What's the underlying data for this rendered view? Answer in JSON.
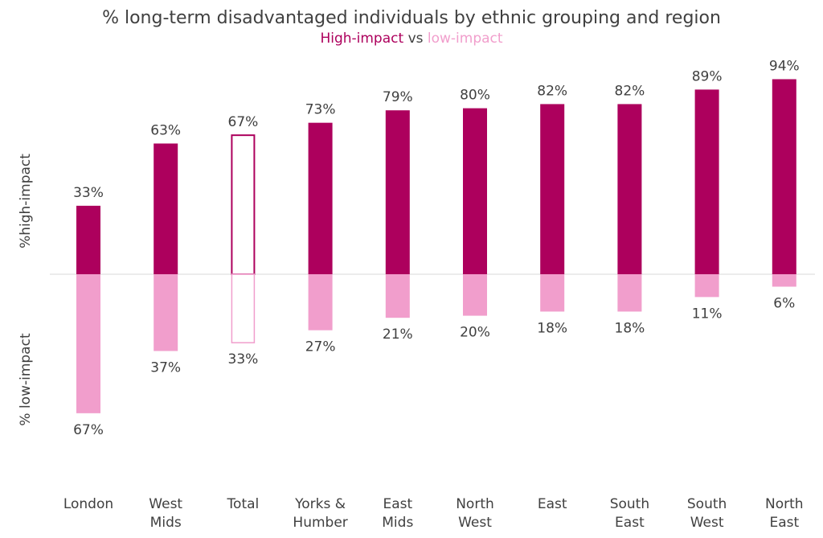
{
  "chart_data": {
    "type": "bar",
    "title": "% long-term disadvantaged individuals by ethnic grouping and region",
    "subtitle": {
      "high": "High-impact",
      "vs": "vs",
      "low": "low-impact"
    },
    "ylabel_top": "%high-impact",
    "ylabel_bottom": "% low-impact",
    "categories": [
      [
        "London"
      ],
      [
        "West",
        "Mids"
      ],
      [
        "Total"
      ],
      [
        "Yorks &",
        "Humber"
      ],
      [
        "East",
        "Mids"
      ],
      [
        "North",
        "West"
      ],
      [
        "East"
      ],
      [
        "South",
        "East"
      ],
      [
        "South",
        "West"
      ],
      [
        "North",
        "East"
      ]
    ],
    "series": [
      {
        "name": "High-impact",
        "values": [
          33,
          63,
          67,
          73,
          79,
          80,
          82,
          82,
          89,
          94
        ]
      },
      {
        "name": "low-impact",
        "values": [
          67,
          37,
          33,
          27,
          21,
          20,
          18,
          18,
          11,
          6
        ]
      }
    ],
    "highlight_category": "Total",
    "value_suffix": "%",
    "colors": {
      "high": "#ad005d",
      "low": "#f19ecc",
      "text": "#404040",
      "baseline": "#d9d9d9"
    },
    "grid": false,
    "legend": "none"
  }
}
